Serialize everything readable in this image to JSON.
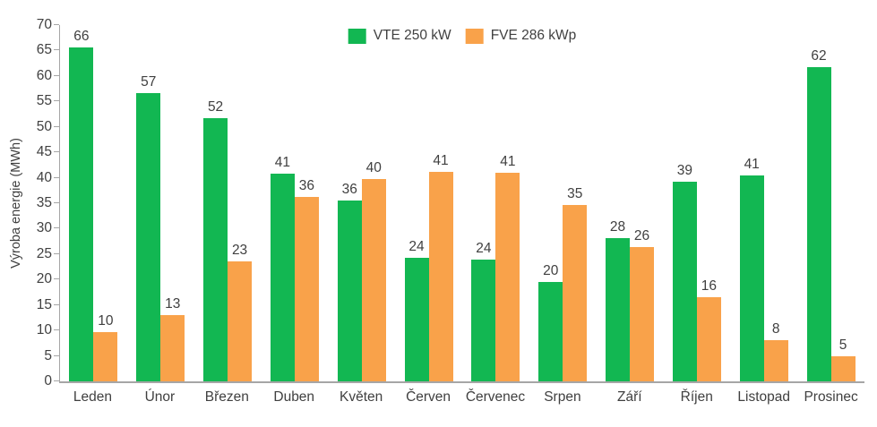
{
  "chart_data": {
    "type": "bar",
    "title": "",
    "xlabel": "",
    "ylabel": "Výroba energie (MWh)",
    "ylim": [
      0,
      70
    ],
    "ytick_step": 5,
    "yticks": [
      0,
      5,
      10,
      15,
      20,
      25,
      30,
      35,
      40,
      45,
      50,
      55,
      60,
      65,
      70
    ],
    "grid": false,
    "legend_position": "top-center",
    "categories": [
      "Leden",
      "Únor",
      "Březen",
      "Duben",
      "Květen",
      "Červen",
      "Červenec",
      "Srpen",
      "Září",
      "Říjen",
      "Listopad",
      "Prosinec"
    ],
    "series": [
      {
        "name": "VTE 250 kW",
        "color": "#12b752",
        "labels": [
          66,
          57,
          52,
          41,
          36,
          24,
          24,
          20,
          28,
          39,
          41,
          62
        ],
        "values": [
          65.6,
          56.7,
          51.7,
          40.8,
          35.6,
          24.3,
          24.0,
          19.5,
          28.2,
          39.2,
          40.5,
          61.7
        ]
      },
      {
        "name": "FVE 286 kWp",
        "color": "#f9a24a",
        "labels": [
          10,
          13,
          23,
          36,
          40,
          41,
          41,
          35,
          26,
          16,
          8,
          5
        ],
        "values": [
          9.6,
          13.0,
          23.5,
          36.3,
          39.7,
          41.2,
          40.9,
          34.7,
          26.4,
          16.5,
          8.1,
          5.0
        ]
      }
    ]
  },
  "colors": {
    "text": "#404040",
    "axis": "#a6a6a6",
    "background": "#ffffff"
  }
}
